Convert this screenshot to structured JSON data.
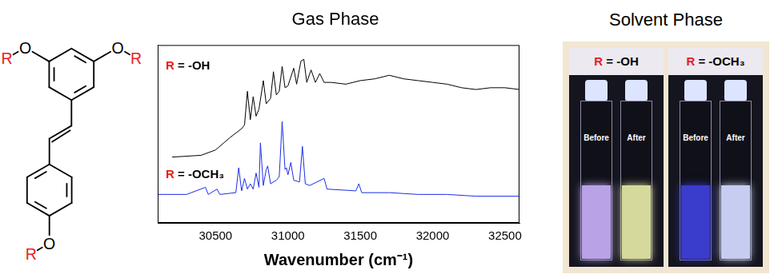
{
  "structure": {
    "atom": "O",
    "substituent": "R"
  },
  "chart_data": {
    "type": "line",
    "title": "Gas Phase",
    "x_label": "Wavenumber (cm⁻¹)",
    "xlim": [
      30100,
      32600
    ],
    "xticks": [
      30500,
      31000,
      31500,
      32000,
      32500
    ],
    "ylim": [
      0,
      1
    ],
    "tick_labels": "x",
    "grid": false,
    "series": [
      {
        "name": "R = -OH",
        "color": "#000000",
        "x": [
          30200,
          30400,
          30500,
          30600,
          30680,
          30700,
          30720,
          30740,
          30760,
          30780,
          30800,
          30830,
          30850,
          30880,
          30900,
          30920,
          30940,
          30960,
          30980,
          31000,
          31040,
          31060,
          31090,
          31110,
          31130,
          31160,
          31190,
          31220,
          31250,
          31300,
          31400,
          31500,
          31600,
          31700,
          31800,
          31900,
          32000,
          32100,
          32200,
          32300,
          32400,
          32500,
          32600
        ],
        "values": [
          0.37,
          0.38,
          0.41,
          0.48,
          0.53,
          0.55,
          0.74,
          0.58,
          0.71,
          0.6,
          0.64,
          0.8,
          0.67,
          0.7,
          0.85,
          0.72,
          0.74,
          0.88,
          0.76,
          0.77,
          0.87,
          0.78,
          0.91,
          0.92,
          0.79,
          0.86,
          0.79,
          0.84,
          0.79,
          0.79,
          0.78,
          0.8,
          0.81,
          0.83,
          0.81,
          0.8,
          0.79,
          0.78,
          0.76,
          0.75,
          0.76,
          0.76,
          0.75
        ]
      },
      {
        "name": "R = -OCH₃",
        "color": "#1c2ee6",
        "x": [
          30100,
          30300,
          30430,
          30450,
          30510,
          30530,
          30640,
          30660,
          30680,
          30700,
          30720,
          30740,
          30760,
          30780,
          30800,
          30810,
          30830,
          30850,
          30860,
          30880,
          30920,
          30940,
          30960,
          30980,
          30990,
          31000,
          31020,
          31040,
          31080,
          31100,
          31120,
          31150,
          31250,
          31270,
          31470,
          31490,
          31510,
          31700,
          31900,
          32100,
          32300,
          32600
        ],
        "values": [
          0.16,
          0.16,
          0.2,
          0.16,
          0.19,
          0.16,
          0.17,
          0.31,
          0.18,
          0.25,
          0.19,
          0.22,
          0.19,
          0.28,
          0.2,
          0.45,
          0.21,
          0.3,
          0.32,
          0.22,
          0.24,
          0.26,
          0.57,
          0.3,
          0.31,
          0.27,
          0.34,
          0.24,
          0.23,
          0.43,
          0.22,
          0.21,
          0.25,
          0.19,
          0.18,
          0.22,
          0.17,
          0.17,
          0.16,
          0.16,
          0.15,
          0.15
        ]
      }
    ]
  },
  "solvent_panel": {
    "title": "Solvent Phase",
    "photos": [
      {
        "label": "R = -OH",
        "cuvettes": [
          {
            "label": "Before",
            "color": "#b9a2e6"
          },
          {
            "label": "After",
            "color": "#d6d99c"
          }
        ]
      },
      {
        "label": "R = -OCH₃",
        "cuvettes": [
          {
            "label": "Before",
            "color": "#3a3ccc"
          },
          {
            "label": "After",
            "color": "#c6cdf0"
          }
        ]
      }
    ]
  }
}
